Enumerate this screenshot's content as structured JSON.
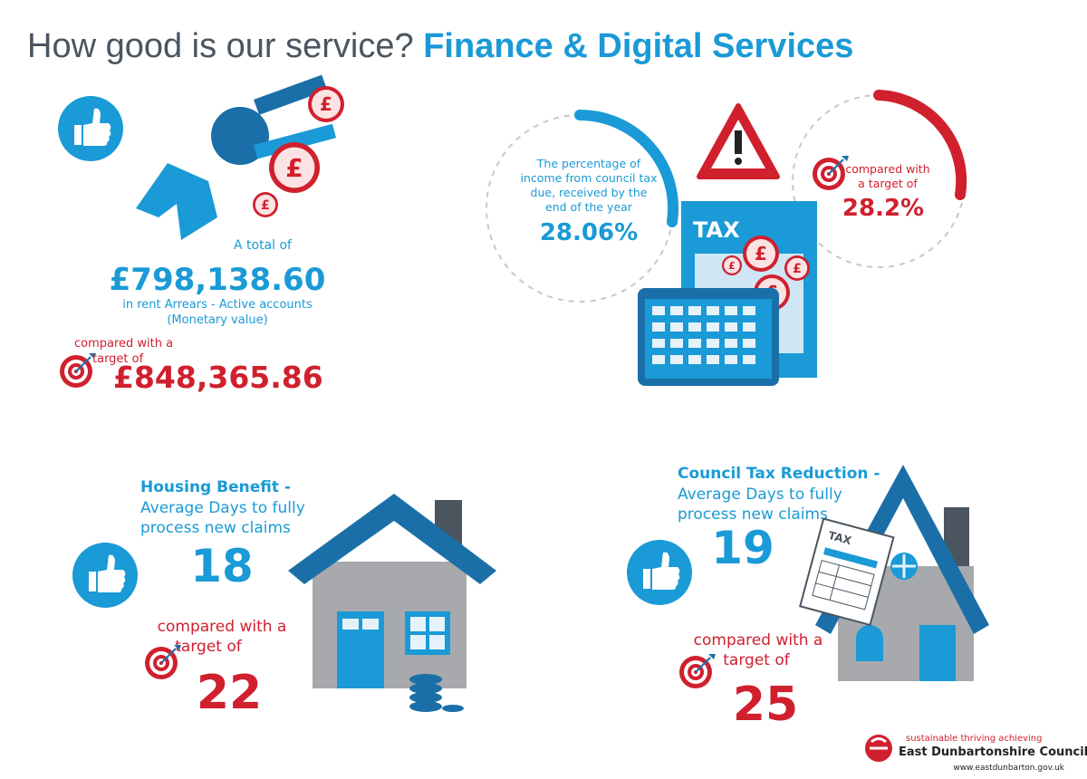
{
  "header": {
    "title_lead": "How good is our service?",
    "title_main": "Finance & Digital Services"
  },
  "icons": {
    "currency": "£",
    "tax": "TAX"
  },
  "rent_arrears": {
    "intro": "A total of",
    "value": "£798,138.60",
    "description": [
      "in rent Arrears - Active accounts",
      "(Monetary value)"
    ],
    "target_label": [
      "compared with a",
      "target of"
    ],
    "target": "£848,365.86"
  },
  "council_tax": {
    "description": [
      "The percentage of",
      "income from council tax",
      "due, received by the",
      "end of the year"
    ],
    "value": "28.06%",
    "target_label": [
      "compared with",
      "a target of"
    ],
    "target": "28.2%"
  },
  "housing_benefit": {
    "heading": "Housing Benefit -",
    "description": [
      "Average Days to fully",
      "process new claims"
    ],
    "value": "18",
    "target_label": [
      "compared with a",
      "target of"
    ],
    "target": "22"
  },
  "council_tax_reduction": {
    "heading": "Council Tax Reduction -",
    "description": [
      "Average Days to fully",
      "process new claims"
    ],
    "value": "19",
    "target_label": [
      "compared with a",
      "target of"
    ],
    "target": "25"
  },
  "footer": {
    "tagline": "sustainable thriving achieving",
    "organisation": "East Dunbartonshire Council",
    "url": "www.eastdunbarton.gov.uk"
  }
}
